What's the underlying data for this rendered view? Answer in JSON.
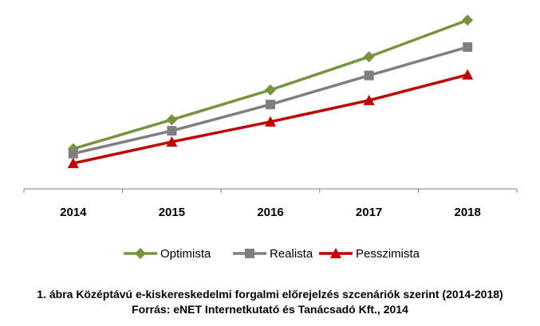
{
  "chart_data": {
    "type": "line",
    "categories": [
      "2014",
      "2015",
      "2016",
      "2017",
      "2018"
    ],
    "ylim": [
      0,
      250
    ],
    "grid": false,
    "legend_position": "bottom",
    "series": [
      {
        "name": "Optimista",
        "color": "#77933C",
        "marker": "diamond",
        "values": [
          58,
          100,
          143,
          191,
          244
        ]
      },
      {
        "name": "Realista",
        "color": "#7F7F7F",
        "marker": "square",
        "values": [
          51,
          84,
          122,
          164,
          205
        ]
      },
      {
        "name": "Pesszimista",
        "color": "#C00000",
        "marker": "triangle",
        "values": [
          37,
          68,
          97,
          128,
          165
        ]
      }
    ]
  },
  "caption": {
    "line1": "1. ábra Középtávú e-kiskereskedelmi forgalmi előrejelzés szcenáriók szerint (2014-2018)",
    "line2": "Forrás: eNET Internetkutató és Tanácsadó Kft., 2014"
  }
}
